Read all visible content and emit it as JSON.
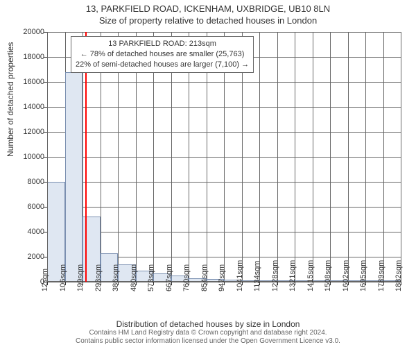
{
  "title_line1": "13, PARKFIELD ROAD, ICKENHAM, UXBRIDGE, UB10 8LN",
  "title_line2": "Size of property relative to detached houses in London",
  "chart": {
    "type": "histogram",
    "background_color": "#ffffff",
    "bar_fill": "#dfe7f2",
    "bar_border": "#7a8fb0",
    "grid_color": "#666666",
    "axis_color": "#666666",
    "text_color": "#333333",
    "marker_color": "#ff0000",
    "font_family": "Arial",
    "tick_fontsize": 11,
    "label_fontsize": 12,
    "title_fontsize": 13,
    "ylim": [
      0,
      20000
    ],
    "ytick_step": 2000,
    "yticks": [
      0,
      2000,
      4000,
      6000,
      8000,
      10000,
      12000,
      14000,
      16000,
      18000,
      20000
    ],
    "xtick_labels": [
      "12sqm",
      "106sqm",
      "199sqm",
      "293sqm",
      "386sqm",
      "480sqm",
      "573sqm",
      "667sqm",
      "760sqm",
      "854sqm",
      "947sqm",
      "1041sqm",
      "1134sqm",
      "1228sqm",
      "1321sqm",
      "1415sqm",
      "1508sqm",
      "1602sqm",
      "1695sqm",
      "1789sqm",
      "1882sqm"
    ],
    "xtick_count": 21,
    "bar_values": [
      8000,
      16800,
      5200,
      2300,
      1400,
      900,
      650,
      500,
      280,
      200,
      150,
      120,
      100,
      80,
      70,
      60,
      50,
      40,
      35,
      30
    ],
    "bar_count": 20,
    "marker_value_sqm": 213,
    "x_range_sqm": [
      12,
      1882
    ],
    "xlabel": "Distribution of detached houses by size in London",
    "ylabel": "Number of detached properties"
  },
  "callout": {
    "line1": "13 PARKFIELD ROAD: 213sqm",
    "line2": "← 78% of detached houses are smaller (25,763)",
    "line3": "22% of semi-detached houses are larger (7,100) →",
    "border_color": "#666666",
    "background": "#ffffff",
    "fontsize": 11
  },
  "attribution": {
    "line1": "Contains HM Land Registry data © Crown copyright and database right 2024.",
    "line2": "Contains public sector information licensed under the Open Government Licence v3.0.",
    "color": "#666666",
    "fontsize": 10
  }
}
